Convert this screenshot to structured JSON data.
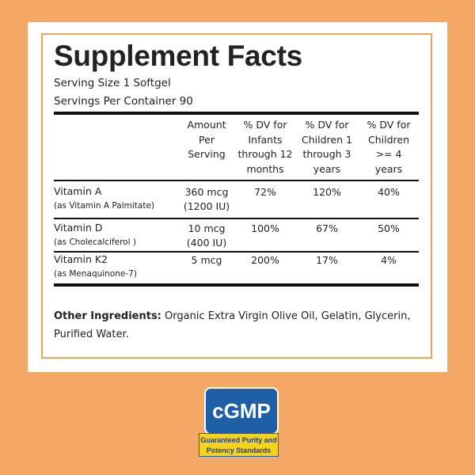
{
  "label": {
    "title": "Supplement Facts",
    "serving_size": "Serving Size 1 Softgel",
    "servings_per_container": "Servings Per Container 90",
    "table": {
      "header": [
        [
          "Amount",
          "Per",
          "Serving"
        ],
        [
          "% DV for",
          "Infants",
          "through 12",
          "months"
        ],
        [
          "% DV for",
          "Children 1",
          "through 3",
          "years"
        ],
        [
          "% DV for",
          "Children",
          ">= 4",
          "years"
        ]
      ],
      "rows": [
        {
          "name": "Vitamin A",
          "source": "(as Vitamin A Palmitate)",
          "amount": [
            "360 mcg",
            "(1200 IU)"
          ],
          "dv": [
            "72%",
            "120%",
            "40%"
          ]
        },
        {
          "name": "Vitamin D",
          "source": "(as Cholecalciferol )",
          "amount": [
            "10 mcg",
            "(400 IU)"
          ],
          "dv": [
            "100%",
            "67%",
            "50%"
          ]
        },
        {
          "name": "Vitamin K2",
          "source": "(as Menaquinone-7)",
          "amount": [
            "5 mcg"
          ],
          "dv": [
            "200%",
            "17%",
            "4%"
          ]
        }
      ]
    },
    "other_ingredients_label": "Other Ingredients:",
    "other_ingredients": "Organic Extra Virgin Olive Oil, Gelatin, Glycerin, Purified Water."
  },
  "badge": {
    "title": "cGMP",
    "subtitle": "Guaranteed Purity and Potency Standards"
  }
}
